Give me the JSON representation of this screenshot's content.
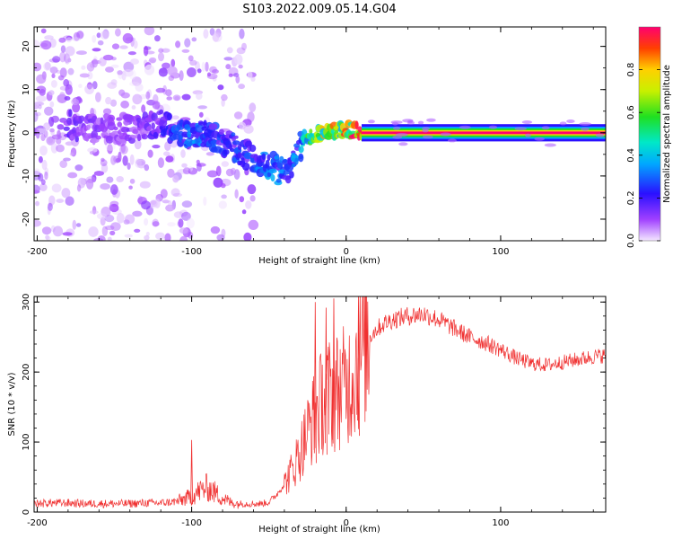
{
  "figure": {
    "title": "S103.2022.009.05.14.G04"
  },
  "chart_data": [
    {
      "type": "heatmap",
      "title": "",
      "xlabel": "Height of straight line (km)",
      "ylabel": "Frequency (Hz)",
      "xlim": [
        -202,
        168
      ],
      "ylim": [
        -25,
        24.5
      ],
      "xticks": [
        -200,
        -100,
        0,
        100
      ],
      "yticks": [
        -20,
        -10,
        0,
        10,
        20
      ],
      "colorbar": {
        "label": "Normalized spectral amplitude",
        "range": [
          0,
          1
        ],
        "ticks": [
          0.0,
          0.2,
          0.4,
          0.6,
          0.8
        ]
      },
      "series": [
        {
          "kind": "scattered_noise_region",
          "x_range": [
            -202,
            -60
          ],
          "freq_range": [
            -25,
            24
          ],
          "level": 0.08
        },
        {
          "kind": "signal_ridge",
          "x": [
            -180,
            -165,
            -150,
            -135,
            -120,
            -105,
            -95,
            -85,
            -75,
            -65,
            -55,
            -48,
            -42,
            -38,
            -34,
            -30,
            -25,
            -20,
            -15,
            -10,
            -5,
            0,
            5,
            10,
            30,
            60,
            100,
            140,
            168
          ],
          "freq": [
            2,
            1,
            1,
            1,
            2,
            0,
            0,
            -1,
            -3,
            -5,
            -7,
            -8,
            -9,
            -8,
            -6,
            -3,
            -1,
            -0.5,
            0,
            0,
            0.5,
            1,
            0.5,
            0,
            0,
            0,
            0,
            0,
            0
          ],
          "amplitude": [
            0.15,
            0.12,
            0.1,
            0.12,
            0.2,
            0.3,
            0.3,
            0.25,
            0.25,
            0.25,
            0.3,
            0.35,
            0.3,
            0.3,
            0.3,
            0.35,
            0.5,
            0.6,
            0.7,
            0.8,
            0.7,
            0.8,
            0.9,
            1.0,
            1.0,
            1.0,
            1.0,
            1.0,
            1.0
          ]
        }
      ]
    },
    {
      "type": "line",
      "title": "",
      "xlabel": "Height of straight line (km)",
      "ylabel": "SNR (10 * v/v)",
      "xlim": [
        -202,
        168
      ],
      "ylim": [
        0,
        308
      ],
      "xticks": [
        -200,
        -100,
        0,
        100
      ],
      "yticks": [
        0,
        100,
        200,
        300
      ],
      "color": "#f03030",
      "series": [
        {
          "x": [
            -202,
            -190,
            -180,
            -170,
            -160,
            -150,
            -140,
            -130,
            -120,
            -110,
            -100,
            -95,
            -90,
            -85,
            -80,
            -75,
            -70,
            -65,
            -60,
            -55,
            -50,
            -45,
            -40,
            -35,
            -30,
            -25,
            -20,
            -15,
            -10,
            -5,
            0,
            5,
            10,
            15,
            20,
            25,
            30,
            40,
            50,
            60,
            70,
            80,
            90,
            100,
            110,
            120,
            130,
            140,
            150,
            160,
            168
          ],
          "values": [
            12,
            13,
            13,
            12,
            12,
            12,
            12,
            13,
            13,
            15,
            22,
            30,
            35,
            28,
            20,
            14,
            12,
            12,
            12,
            12,
            14,
            25,
            40,
            60,
            85,
            115,
            140,
            160,
            170,
            175,
            180,
            200,
            230,
            250,
            262,
            270,
            275,
            280,
            283,
            275,
            262,
            250,
            242,
            232,
            220,
            212,
            210,
            214,
            218,
            222,
            224
          ]
        }
      ],
      "spikes": [
        {
          "x": -100,
          "y": 103
        },
        {
          "x": -20,
          "y": 300
        },
        {
          "x": -13,
          "y": 292
        },
        {
          "x": -8,
          "y": 305
        },
        {
          "x": 8,
          "y": 308
        }
      ]
    }
  ]
}
